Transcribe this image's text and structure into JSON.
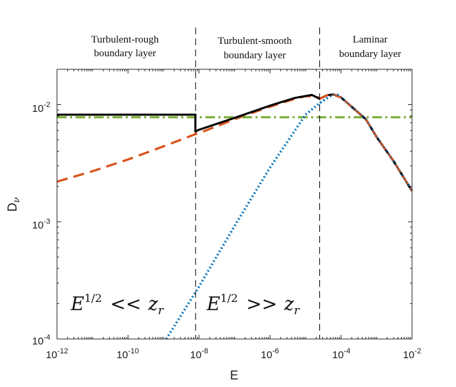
{
  "chart_data": {
    "type": "line",
    "xscale": "log",
    "yscale": "log",
    "xlim": [
      1e-12,
      0.01
    ],
    "ylim": [
      0.0001,
      0.02
    ],
    "xlabel": "E",
    "ylabel": {
      "base": "D",
      "sub": "ν"
    },
    "xticks": [
      {
        "value": 1e-12,
        "base": "10",
        "exp": "-12"
      },
      {
        "value": 1e-10,
        "base": "10",
        "exp": "-10"
      },
      {
        "value": 1e-08,
        "base": "10",
        "exp": "-8"
      },
      {
        "value": 1e-06,
        "base": "10",
        "exp": "-6"
      },
      {
        "value": 0.0001,
        "base": "10",
        "exp": "-4"
      },
      {
        "value": 0.01,
        "base": "10",
        "exp": "-2"
      }
    ],
    "yticks": [
      {
        "value": 0.0001,
        "base": "10",
        "exp": "-4"
      },
      {
        "value": 0.001,
        "base": "10",
        "exp": "-3"
      },
      {
        "value": 0.01,
        "base": "10",
        "exp": "-2"
      }
    ],
    "grid": false,
    "regions": [
      {
        "line1": "Turbulent-rough",
        "line2": "boundary layer"
      },
      {
        "line1": "Turbulent-smooth",
        "line2": "boundary layer"
      },
      {
        "line1": "Laminar",
        "line2": "boundary layer"
      }
    ],
    "boundaries": [
      8e-09,
      2.5e-05
    ],
    "annotations": [
      {
        "base": "E",
        "sup": "1/2",
        "op": "<<",
        "rhs": "z",
        "sub": "r"
      },
      {
        "base": "E",
        "sup": "1/2",
        "op": ">>",
        "rhs": "z",
        "sub": "r"
      }
    ],
    "series": [
      {
        "name": "turbulent-smooth",
        "color": "#d95319",
        "style": "dashed",
        "x": [
          1e-12,
          1e-11,
          1e-10,
          1e-09,
          8e-09,
          1e-08,
          1e-07,
          1e-06,
          5e-06,
          1e-05,
          2e-05,
          2.5e-05,
          4e-05,
          6e-05,
          0.0001,
          0.0005,
          0.001,
          0.003,
          0.01
        ],
        "y": [
          0.0022,
          0.0027,
          0.0034,
          0.0044,
          0.0056,
          0.0057,
          0.0075,
          0.0096,
          0.0112,
          0.0118,
          0.0118,
          0.0112,
          0.012,
          0.0122,
          0.0115,
          0.0075,
          0.0053,
          0.0033,
          0.00183
        ]
      },
      {
        "name": "turbulent-rough",
        "color": "#77ac30",
        "style": "dashdot",
        "x": [
          1e-12,
          0.01
        ],
        "y": [
          0.0078,
          0.0078
        ]
      },
      {
        "name": "laminar",
        "color": "#0072bd",
        "style": "dotted",
        "x": [
          1.2e-09,
          1e-08,
          1e-07,
          1e-06,
          1e-05,
          2.5e-05,
          5e-05,
          6e-05,
          8e-05,
          0.0001,
          0.0005,
          0.001,
          0.003,
          0.01
        ],
        "y": [
          0.0001,
          0.00028,
          0.00092,
          0.0029,
          0.0082,
          0.0103,
          0.0118,
          0.0122,
          0.0121,
          0.0115,
          0.0075,
          0.0053,
          0.0033,
          0.00183
        ]
      },
      {
        "name": "combined",
        "color": "#000000",
        "style": "solid",
        "x": [
          1e-12,
          7.9e-09,
          7.9e-09,
          8e-09,
          1e-08,
          1e-07,
          1e-06,
          5e-06,
          1.5e-05,
          2.5e-05,
          4e-05,
          6e-05,
          0.0001,
          0.0005,
          0.001,
          0.003,
          0.01
        ],
        "y": [
          0.0082,
          0.0082,
          0.0058,
          0.0059,
          0.0061,
          0.0077,
          0.0098,
          0.0114,
          0.0121,
          0.0112,
          0.012,
          0.0122,
          0.0115,
          0.0075,
          0.0053,
          0.0033,
          0.00183
        ]
      }
    ]
  }
}
